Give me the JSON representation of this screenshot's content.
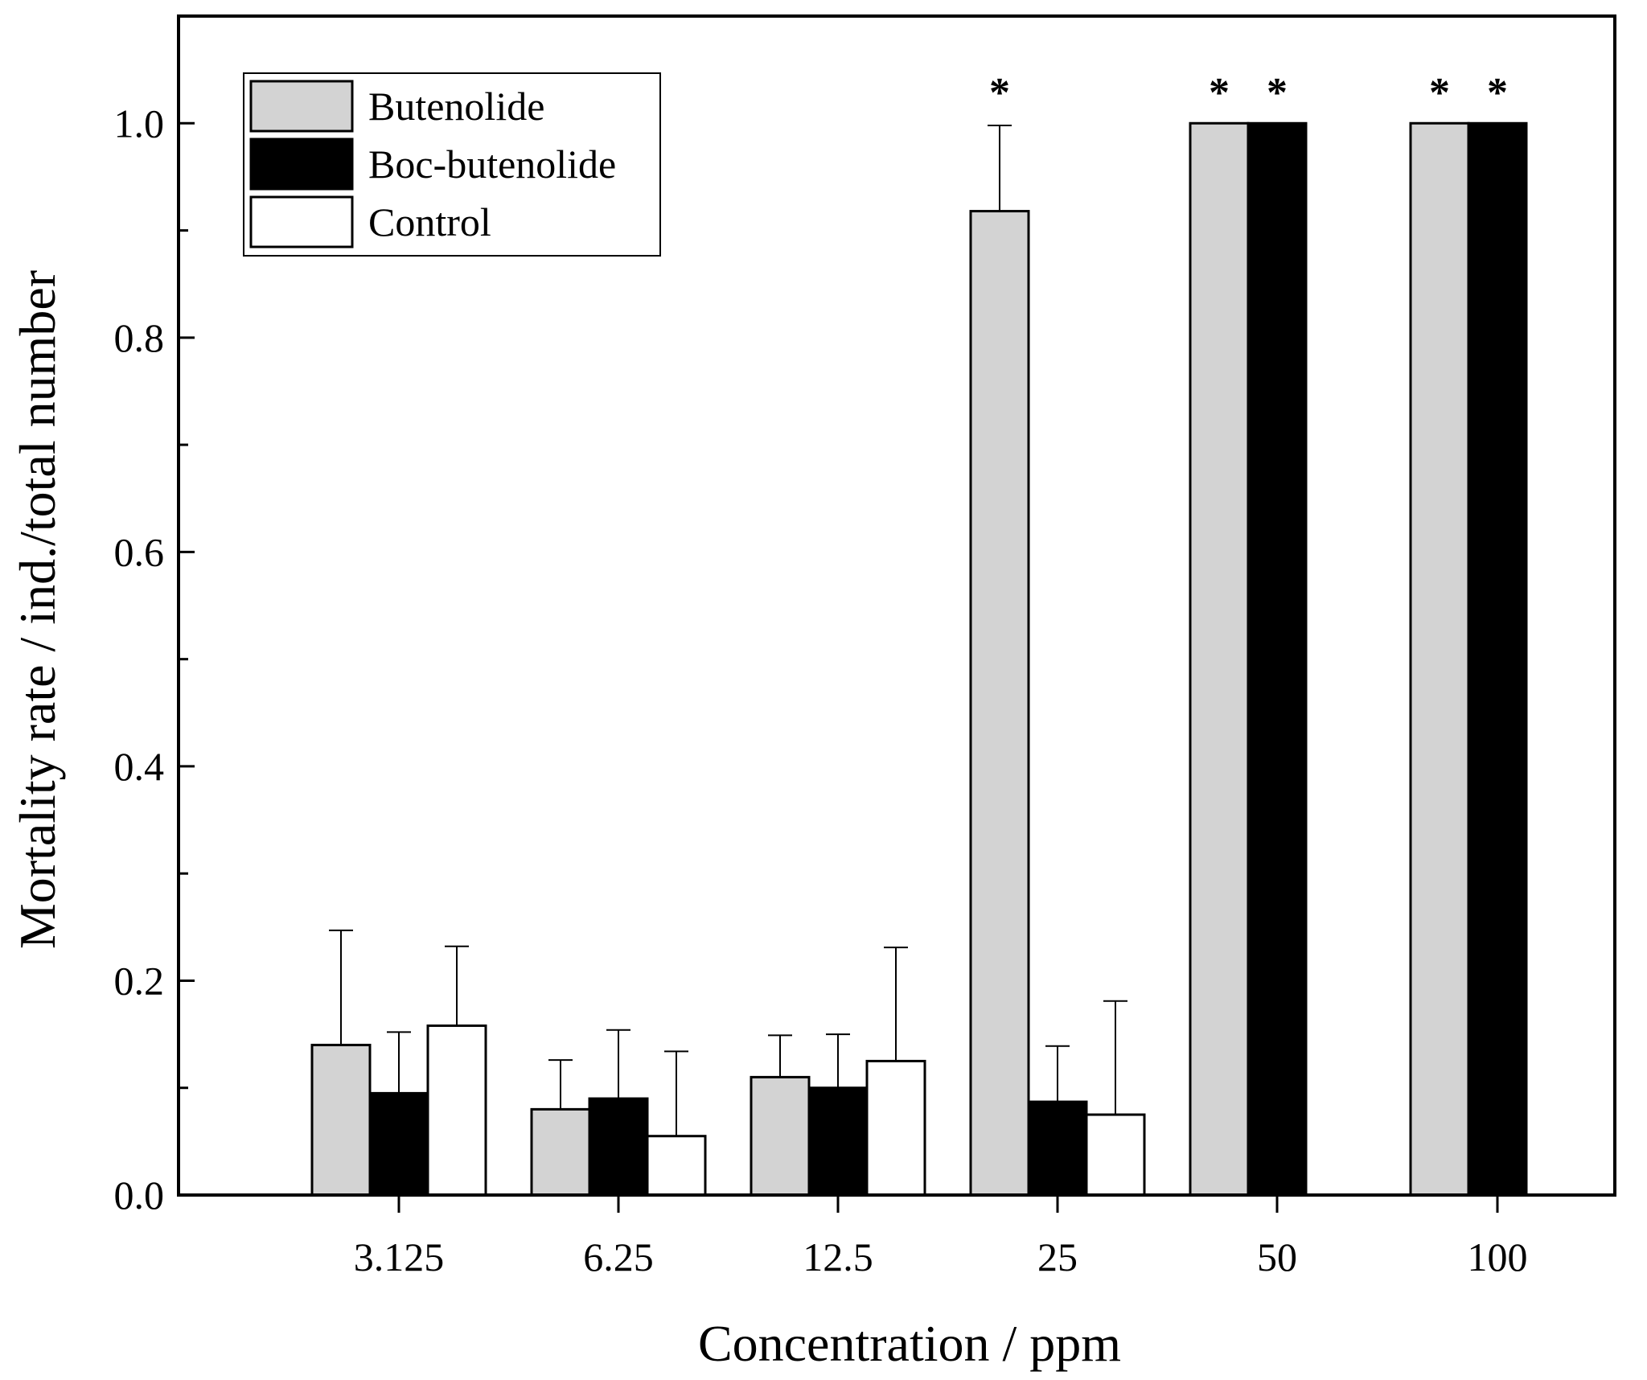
{
  "chart_data": {
    "type": "bar",
    "xlabel": "Concentration / ppm",
    "ylabel": "Mortality rate / ind./total number",
    "ylim": [
      0,
      1.1
    ],
    "yticks": [
      0.0,
      0.2,
      0.4,
      0.6,
      0.8,
      1.0
    ],
    "ytick_labels": [
      "0.0",
      "0.2",
      "0.4",
      "0.6",
      "0.8",
      "1.0"
    ],
    "categories": [
      "3.125",
      "6.25",
      "12.5",
      "25",
      "50",
      "100"
    ],
    "legend_position": "top-left",
    "significance_marker": "*",
    "series": [
      {
        "name": "Butenolide",
        "color": "#d3d3d3",
        "values": [
          0.14,
          0.08,
          0.11,
          0.918,
          1.0,
          1.0
        ],
        "errors": [
          0.107,
          0.046,
          0.039,
          0.08,
          0.0,
          0.0
        ],
        "significant": [
          false,
          false,
          false,
          true,
          true,
          true
        ]
      },
      {
        "name": "Boc-butenolide",
        "color": "#000000",
        "values": [
          0.095,
          0.09,
          0.1,
          0.087,
          1.0,
          1.0
        ],
        "errors": [
          0.057,
          0.064,
          0.05,
          0.052,
          0.0,
          0.0
        ],
        "significant": [
          false,
          false,
          false,
          false,
          true,
          true
        ]
      },
      {
        "name": "Control",
        "color": "#ffffff",
        "values": [
          0.158,
          0.055,
          0.125,
          0.075,
          null,
          null
        ],
        "errors": [
          0.074,
          0.079,
          0.106,
          0.106,
          null,
          null
        ],
        "significant": [
          false,
          false,
          false,
          false,
          false,
          false
        ]
      }
    ]
  }
}
